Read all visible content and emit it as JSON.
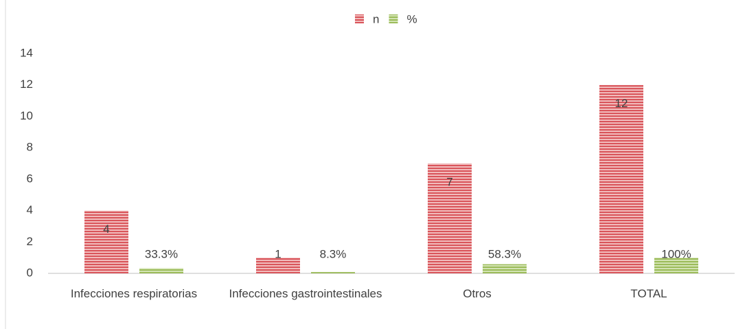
{
  "chart_data": {
    "type": "bar",
    "categories": [
      "Infecciones respiratorias",
      "Infecciones gastrointestinales",
      "Otros",
      "TOTAL"
    ],
    "series": [
      {
        "name": "n",
        "color": "#d9545a",
        "values": [
          4,
          1,
          7,
          12
        ]
      },
      {
        "name": "%",
        "color": "#9bbb59",
        "values": [
          0.333,
          0.083,
          0.583,
          1
        ],
        "value_labels": [
          "33.3%",
          "8.3%",
          "58.3%",
          "100%"
        ]
      }
    ],
    "ylim": [
      0,
      14
    ],
    "yticks": [
      0,
      2,
      4,
      6,
      8,
      10,
      12,
      14
    ],
    "grid": false,
    "legend": "top"
  }
}
